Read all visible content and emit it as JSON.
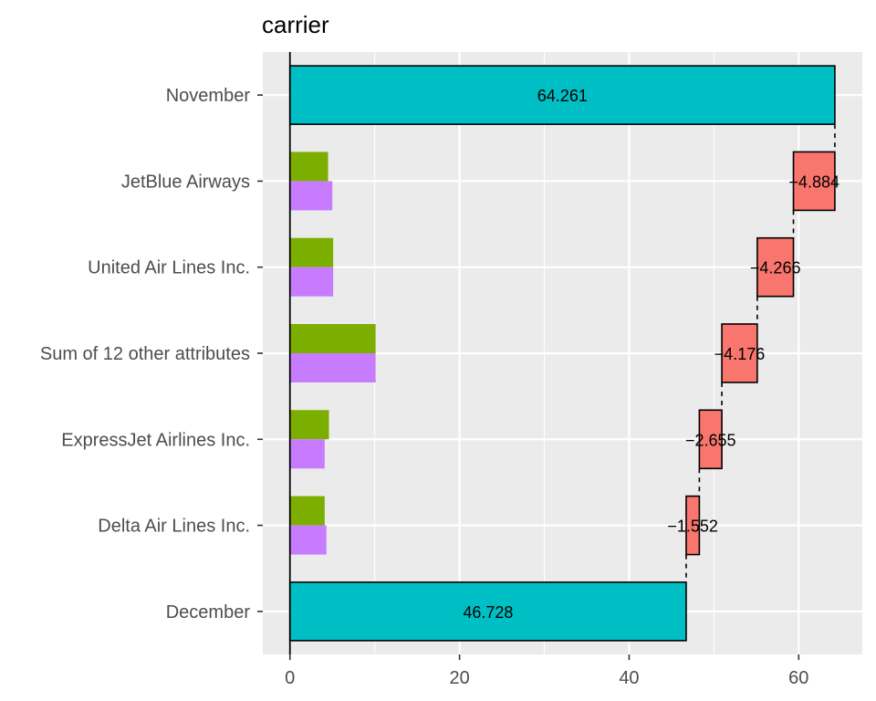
{
  "chart_data": {
    "type": "bar",
    "subtype": "waterfall-with-contributions",
    "title": "carrier",
    "xlabel": "",
    "ylabel": "",
    "xlim": [
      -3.2,
      67.5
    ],
    "x_ticks": [
      0,
      20,
      40,
      60
    ],
    "x_tick_labels": [
      "0",
      "20",
      "40",
      "60"
    ],
    "grid": true,
    "legend": "none",
    "categories": [
      "November",
      "JetBlue Airways",
      "United Air Lines Inc.",
      "Sum of 12 other attributes",
      "ExpressJet Airlines Inc.",
      "Delta Air Lines Inc.",
      "December"
    ],
    "totals": [
      {
        "category": "November",
        "value": 64.261,
        "label": "64.261"
      },
      {
        "category": "December",
        "value": 46.728,
        "label": "46.728"
      }
    ],
    "steps": [
      {
        "category": "JetBlue Airways",
        "value": -4.884,
        "label": "−4.884"
      },
      {
        "category": "United Air Lines Inc.",
        "value": -4.266,
        "label": "−4.266"
      },
      {
        "category": "Sum of 12 other attributes",
        "value": -4.176,
        "label": "−4.176"
      },
      {
        "category": "ExpressJet Airlines Inc.",
        "value": -2.655,
        "label": "−2.655"
      },
      {
        "category": "Delta Air Lines Inc.",
        "value": -1.552,
        "label": "−1.552"
      }
    ],
    "side_bars": [
      {
        "category": "JetBlue Airways",
        "green": 4.5,
        "purple": 5.0
      },
      {
        "category": "United Air Lines Inc.",
        "green": 5.1,
        "purple": 5.1
      },
      {
        "category": "Sum of 12 other attributes",
        "green": 10.1,
        "purple": 10.1
      },
      {
        "category": "ExpressJet Airlines Inc.",
        "green": 4.6,
        "purple": 4.1
      },
      {
        "category": "Delta Air Lines Inc.",
        "green": 4.1,
        "purple": 4.3
      }
    ],
    "colors": {
      "total": "#00BFC4",
      "negative": "#F8766D",
      "green": "#7CAE00",
      "purple": "#C77CFF",
      "panel": "#EBEBEB",
      "grid": "#FFFFFF"
    }
  }
}
